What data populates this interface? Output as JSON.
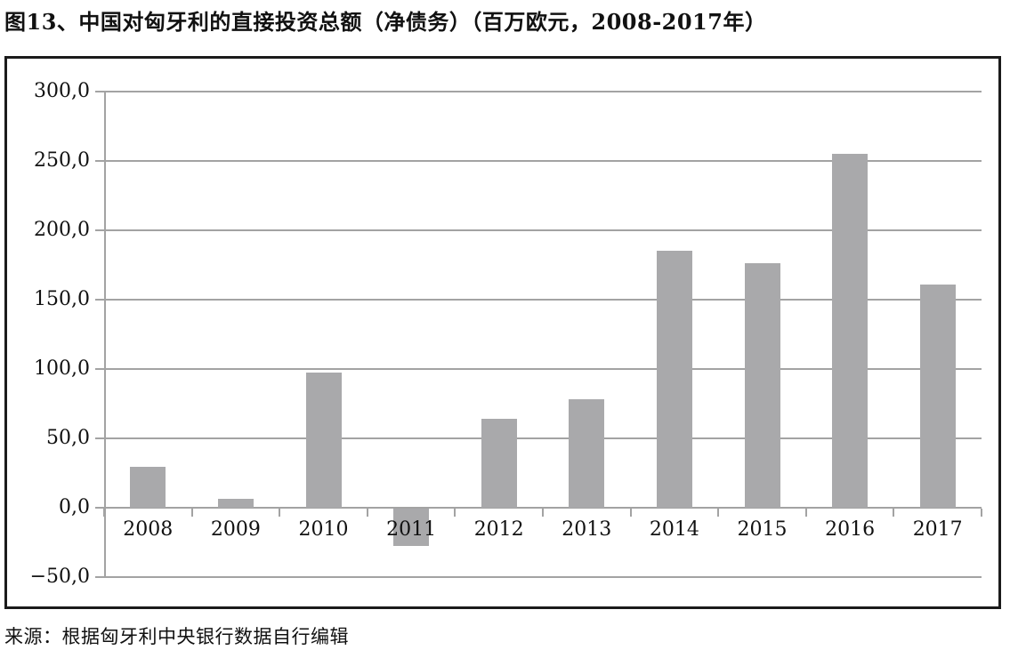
{
  "title": "图13、中国对匈牙利的直接投资总额（净债务）（百万欧元，2008-2017年）",
  "source": "来源：根据匈牙利中央银行数据自行编辑",
  "colors": {
    "bar": "#a9a9ab",
    "grid": "#a3a3a3",
    "frame_border": "#1b1b1b",
    "text": "#111111"
  },
  "chart_data": {
    "type": "bar",
    "title": "图13、中国对匈牙利的直接投资总额（净债务）（百万欧元，2008-2017年）",
    "categories": [
      "2008",
      "2009",
      "2010",
      "2011",
      "2012",
      "2013",
      "2014",
      "2015",
      "2016",
      "2017"
    ],
    "values": [
      29,
      6,
      97,
      -27,
      64,
      78,
      185,
      176,
      255,
      161
    ],
    "xlabel": "",
    "ylabel": "",
    "unit": "百万欧元",
    "ylim": [
      -50,
      300
    ],
    "ytick_step": 50,
    "ytick_labels": [
      "300,0",
      "250,0",
      "200,0",
      "150,0",
      "100,0",
      "50,0",
      "0,0",
      "−50,0"
    ],
    "grid": true,
    "legend": false,
    "bar_color": "#a9a9ab"
  }
}
